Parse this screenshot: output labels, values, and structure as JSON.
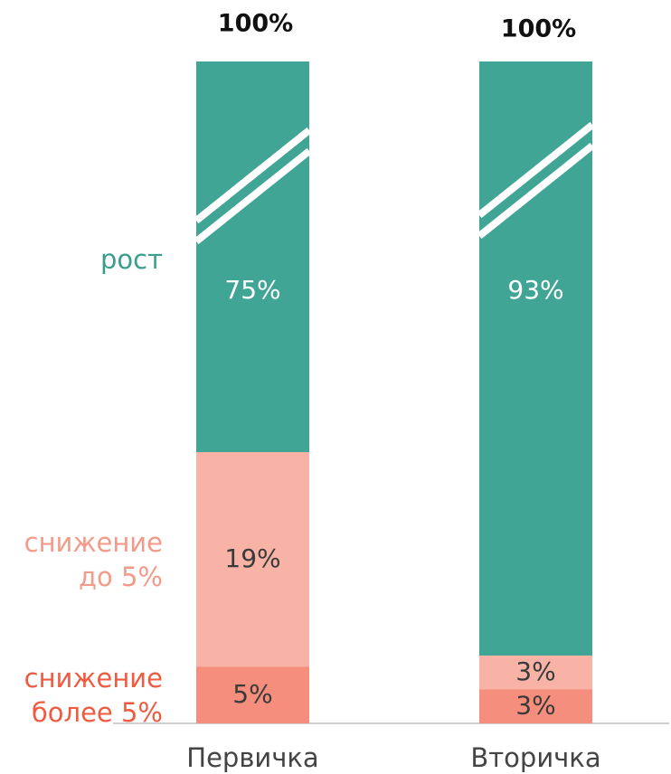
{
  "chart_data": {
    "type": "stacked_bar",
    "categories": [
      "Первичка",
      "Вторичка"
    ],
    "series": [
      {
        "name": "снижение более 5%",
        "color": "#f58e7c",
        "label_color": "#ef5b41",
        "values": [
          5,
          3
        ],
        "value_labels": [
          "5%",
          "3%"
        ]
      },
      {
        "name": "снижение до 5%",
        "color": "#f9b3a6",
        "label_color": "#f49a89",
        "values": [
          19,
          3
        ],
        "value_labels": [
          "19%",
          "3%"
        ]
      },
      {
        "name": "рост",
        "color": "#41a596",
        "label_color": "#3a9e8f",
        "values": [
          75,
          93
        ],
        "value_labels": [
          "75%",
          "93%"
        ]
      }
    ],
    "totals": [
      100,
      100
    ],
    "total_labels": [
      "100%",
      "100%"
    ]
  }
}
